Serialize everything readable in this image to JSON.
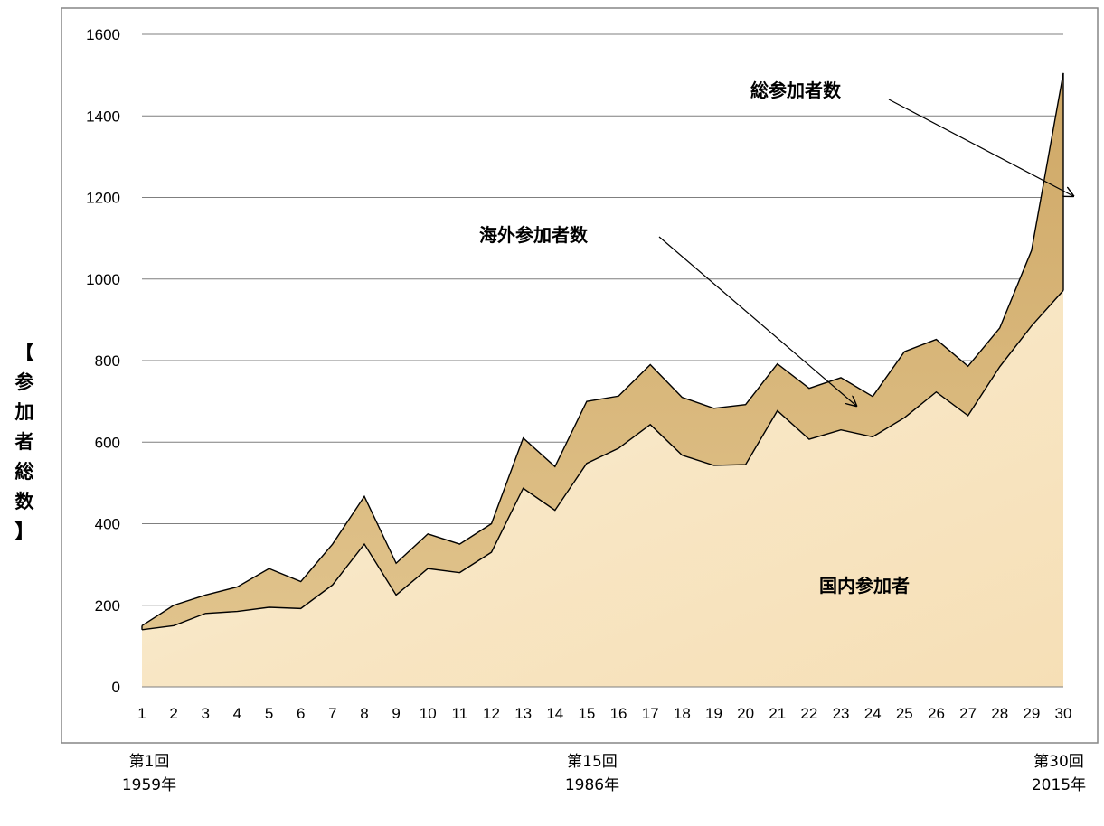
{
  "chart_data": {
    "type": "area",
    "ylabel": "【参加者総数】",
    "ylim": [
      0,
      1600
    ],
    "yticks": [
      0,
      200,
      400,
      600,
      800,
      1000,
      1200,
      1400,
      1600
    ],
    "grid": true,
    "categories": [
      "1",
      "2",
      "3",
      "4",
      "5",
      "6",
      "7",
      "8",
      "9",
      "10",
      "11",
      "12",
      "13",
      "14",
      "15",
      "16",
      "17",
      "18",
      "19",
      "20",
      "21",
      "22",
      "23",
      "24",
      "25",
      "26",
      "27",
      "28",
      "29",
      "30"
    ],
    "series": [
      {
        "name": "国内参加者",
        "values": [
          140,
          150,
          180,
          185,
          195,
          192,
          250,
          350,
          225,
          290,
          280,
          330,
          487,
          433,
          548,
          585,
          643,
          568,
          543,
          545,
          677,
          607,
          630,
          613,
          660,
          723,
          665,
          785,
          885,
          972
        ]
      },
      {
        "name": "総参加者数",
        "values": [
          150,
          200,
          225,
          245,
          290,
          258,
          350,
          467,
          303,
          375,
          350,
          400,
          610,
          540,
          700,
          713,
          790,
          710,
          683,
          692,
          792,
          732,
          758,
          712,
          822,
          852,
          786,
          880,
          1070,
          1505
        ]
      }
    ],
    "annotations": [
      {
        "text": "総参加者数"
      },
      {
        "text": "海外参加者数"
      },
      {
        "text": "国内参加者"
      }
    ],
    "colors": {
      "total_fill": "#d9b97a",
      "domestic_fill": "#fbecd0",
      "line": "#000000",
      "grid": "#7f7f7f",
      "frame": "#868686"
    }
  },
  "footer": [
    {
      "line1": "第1回",
      "line2": "1959年"
    },
    {
      "line1": "第15回",
      "line2": "1986年"
    },
    {
      "line1": "第30回",
      "line2": "2015年"
    }
  ]
}
